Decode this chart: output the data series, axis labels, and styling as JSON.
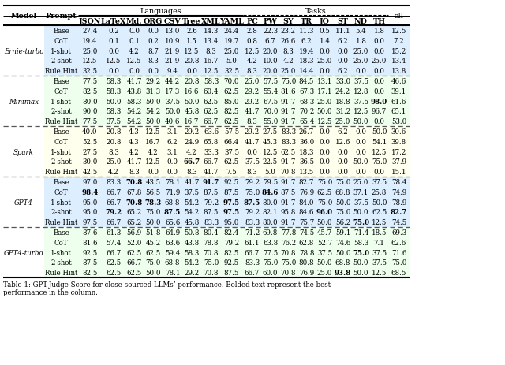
{
  "title": "Table 1: GPT-Judge Score for close-sourced LLMs’ performance. Bolded text represent the best\nperformance in the column.",
  "headers_row2": [
    "JSON",
    "LaTeX",
    "Md.",
    "ORG",
    "CSV",
    "Tree",
    "XML",
    "YAML",
    "PC",
    "PW",
    "SY",
    "TR",
    "JO",
    "ST",
    "ND",
    "TH",
    "all"
  ],
  "models": [
    {
      "name": "Ernie-turbo",
      "bg_color": "#ddeeff",
      "rows": [
        {
          "prompt": "Base",
          "values": [
            "27.4",
            "0.2",
            "0.0",
            "0.0",
            "13.0",
            "2.6",
            "14.3",
            "24.4",
            "2.8",
            "22.3",
            "23.2",
            "11.3",
            "0.5",
            "11.1",
            "5.4",
            "1.8",
            "12.5"
          ],
          "bold": []
        },
        {
          "prompt": "CoT",
          "values": [
            "19.4",
            "0.1",
            "0.1",
            "0.2",
            "10.9",
            "1.5",
            "13.4",
            "19.7",
            "0.8",
            "6.7",
            "26.6",
            "6.2",
            "1.4",
            "6.2",
            "1.8",
            "0.0",
            "7.2"
          ],
          "bold": []
        },
        {
          "prompt": "1-shot",
          "values": [
            "25.0",
            "0.0",
            "4.2",
            "8.7",
            "21.9",
            "12.5",
            "8.3",
            "25.0",
            "12.5",
            "20.0",
            "8.3",
            "19.4",
            "0.0",
            "0.0",
            "25.0",
            "0.0",
            "15.2"
          ],
          "bold": []
        },
        {
          "prompt": "2-shot",
          "values": [
            "12.5",
            "12.5",
            "12.5",
            "8.3",
            "21.9",
            "20.8",
            "16.7",
            "5.0",
            "4.2",
            "10.0",
            "4.2",
            "18.3",
            "25.0",
            "0.0",
            "25.0",
            "25.0",
            "13.4"
          ],
          "bold": []
        },
        {
          "prompt": "Rule Hint",
          "values": [
            "32.5",
            "0.0",
            "0.0",
            "0.0",
            "9.4",
            "0.0",
            "12.5",
            "32.5",
            "8.3",
            "20.0",
            "25.0",
            "14.4",
            "0.0",
            "6.2",
            "0.0",
            "0.0",
            "13.8"
          ],
          "bold": []
        }
      ]
    },
    {
      "name": "Minimax",
      "bg_color": "#eeffee",
      "rows": [
        {
          "prompt": "Base",
          "values": [
            "77.5",
            "58.3",
            "41.7",
            "29.2",
            "44.2",
            "20.8",
            "58.3",
            "70.0",
            "25.0",
            "57.5",
            "75.0",
            "84.5",
            "13.1",
            "33.0",
            "37.5",
            "0.0",
            "46.6"
          ],
          "bold": []
        },
        {
          "prompt": "CoT",
          "values": [
            "82.5",
            "58.3",
            "43.8",
            "31.3",
            "17.3",
            "16.6",
            "60.4",
            "62.5",
            "29.2",
            "55.4",
            "81.6",
            "67.3",
            "17.1",
            "24.2",
            "12.8",
            "0.0",
            "39.1"
          ],
          "bold": []
        },
        {
          "prompt": "1-shot",
          "values": [
            "80.0",
            "50.0",
            "58.3",
            "50.0",
            "37.5",
            "50.0",
            "62.5",
            "85.0",
            "29.2",
            "67.5",
            "91.7",
            "68.3",
            "25.0",
            "18.8",
            "37.5",
            "98.0",
            "61.6"
          ],
          "bold": [
            15
          ]
        },
        {
          "prompt": "2-shot",
          "values": [
            "90.0",
            "58.3",
            "54.2",
            "54.2",
            "50.0",
            "45.8",
            "62.5",
            "82.5",
            "41.7",
            "70.0",
            "91.7",
            "70.2",
            "50.0",
            "31.2",
            "12.5",
            "96.7",
            "65.1"
          ],
          "bold": []
        },
        {
          "prompt": "Rule Hint",
          "values": [
            "77.5",
            "37.5",
            "54.2",
            "50.0",
            "40.6",
            "16.7",
            "66.7",
            "62.5",
            "8.3",
            "55.0",
            "91.7",
            "65.4",
            "12.5",
            "25.0",
            "50.0",
            "0.0",
            "53.0"
          ],
          "bold": []
        }
      ]
    },
    {
      "name": "Spark",
      "bg_color": "#ffffee",
      "rows": [
        {
          "prompt": "Base",
          "values": [
            "40.0",
            "20.8",
            "4.3",
            "12.5",
            "3.1",
            "29.2",
            "63.6",
            "57.5",
            "29.2",
            "27.5",
            "83.3",
            "26.7",
            "0.0",
            "6.2",
            "0.0",
            "50.0",
            "30.6"
          ],
          "bold": []
        },
        {
          "prompt": "CoT",
          "values": [
            "52.5",
            "20.8",
            "4.3",
            "16.7",
            "6.2",
            "24.9",
            "65.8",
            "66.4",
            "41.7",
            "45.3",
            "83.3",
            "36.0",
            "0.0",
            "12.6",
            "0.0",
            "54.1",
            "39.8"
          ],
          "bold": []
        },
        {
          "prompt": "1-shot",
          "values": [
            "27.5",
            "8.3",
            "4.2",
            "4.2",
            "3.1",
            "4.2",
            "33.3",
            "37.5",
            "0.0",
            "12.5",
            "62.5",
            "18.3",
            "0.0",
            "0.0",
            "0.0",
            "12.5",
            "17.2"
          ],
          "bold": []
        },
        {
          "prompt": "2-shot",
          "values": [
            "30.0",
            "25.0",
            "41.7",
            "12.5",
            "0.0",
            "66.7",
            "66.7",
            "62.5",
            "37.5",
            "22.5",
            "91.7",
            "36.5",
            "0.0",
            "0.0",
            "50.0",
            "75.0",
            "37.9"
          ],
          "bold": [
            5
          ]
        },
        {
          "prompt": "Rule Hint",
          "values": [
            "42.5",
            "4.2",
            "8.3",
            "0.0",
            "0.0",
            "8.3",
            "41.7",
            "7.5",
            "8.3",
            "5.0",
            "70.8",
            "13.5",
            "0.0",
            "0.0",
            "0.0",
            "0.0",
            "15.1"
          ],
          "bold": []
        }
      ]
    },
    {
      "name": "GPT4",
      "bg_color": "#ddeeff",
      "rows": [
        {
          "prompt": "Base",
          "values": [
            "97.0",
            "83.3",
            "70.8",
            "43.5",
            "78.1",
            "41.7",
            "91.7",
            "92.5",
            "79.2",
            "79.5",
            "91.7",
            "82.7",
            "75.0",
            "75.0",
            "25.0",
            "37.5",
            "78.4"
          ],
          "bold": [
            2,
            6
          ]
        },
        {
          "prompt": "CoT",
          "values": [
            "98.4",
            "66.7",
            "67.8",
            "56.5",
            "71.9",
            "37.5",
            "87.5",
            "87.5",
            "75.0",
            "84.6",
            "87.5",
            "76.9",
            "62.5",
            "68.8",
            "37.1",
            "25.8",
            "74.9"
          ],
          "bold": [
            0,
            9
          ]
        },
        {
          "prompt": "1-shot",
          "values": [
            "95.0",
            "66.7",
            "70.8",
            "78.3",
            "68.8",
            "54.2",
            "79.2",
            "97.5",
            "87.5",
            "80.0",
            "91.7",
            "84.0",
            "75.0",
            "50.0",
            "37.5",
            "50.0",
            "78.9"
          ],
          "bold": [
            2,
            3,
            7,
            8
          ]
        },
        {
          "prompt": "2-shot",
          "values": [
            "95.0",
            "79.2",
            "65.2",
            "75.0",
            "87.5",
            "54.2",
            "87.5",
            "97.5",
            "79.2",
            "82.1",
            "95.8",
            "84.6",
            "96.0",
            "75.0",
            "50.0",
            "62.5",
            "82.7"
          ],
          "bold": [
            1,
            4,
            7,
            12,
            16
          ]
        },
        {
          "prompt": "Rule Hint",
          "values": [
            "97.5",
            "66.7",
            "65.2",
            "50.0",
            "65.6",
            "45.8",
            "83.3",
            "95.0",
            "83.3",
            "80.0",
            "91.7",
            "75.7",
            "50.0",
            "56.2",
            "75.0",
            "12.5",
            "74.5"
          ],
          "bold": [
            14
          ]
        }
      ]
    },
    {
      "name": "GPT4-turbo",
      "bg_color": "#eeffee",
      "rows": [
        {
          "prompt": "Base",
          "values": [
            "87.6",
            "61.3",
            "56.9",
            "51.8",
            "64.9",
            "50.8",
            "80.4",
            "82.4",
            "71.2",
            "69.8",
            "77.8",
            "74.5",
            "45.7",
            "59.1",
            "71.4",
            "18.5",
            "69.3"
          ],
          "bold": []
        },
        {
          "prompt": "CoT",
          "values": [
            "81.6",
            "57.4",
            "52.0",
            "45.2",
            "63.6",
            "43.8",
            "78.8",
            "79.2",
            "61.1",
            "63.8",
            "76.2",
            "62.8",
            "52.7",
            "74.6",
            "58.3",
            "7.1",
            "62.6"
          ],
          "bold": []
        },
        {
          "prompt": "1-shot",
          "values": [
            "92.5",
            "66.7",
            "62.5",
            "62.5",
            "59.4",
            "58.3",
            "70.8",
            "82.5",
            "66.7",
            "77.5",
            "70.8",
            "78.8",
            "37.5",
            "50.0",
            "75.0",
            "37.5",
            "71.6"
          ],
          "bold": [
            14
          ]
        },
        {
          "prompt": "2-shot",
          "values": [
            "87.5",
            "62.5",
            "66.7",
            "75.0",
            "68.8",
            "54.2",
            "75.0",
            "92.5",
            "83.3",
            "75.0",
            "75.0",
            "80.8",
            "50.0",
            "68.8",
            "50.0",
            "37.5",
            "75.0"
          ],
          "bold": []
        },
        {
          "prompt": "Rule Hint",
          "values": [
            "82.5",
            "62.5",
            "62.5",
            "50.0",
            "78.1",
            "29.2",
            "70.8",
            "87.5",
            "66.7",
            "60.0",
            "70.8",
            "76.9",
            "25.0",
            "93.8",
            "50.0",
            "12.5",
            "68.5"
          ],
          "bold": [
            13
          ]
        }
      ]
    }
  ]
}
